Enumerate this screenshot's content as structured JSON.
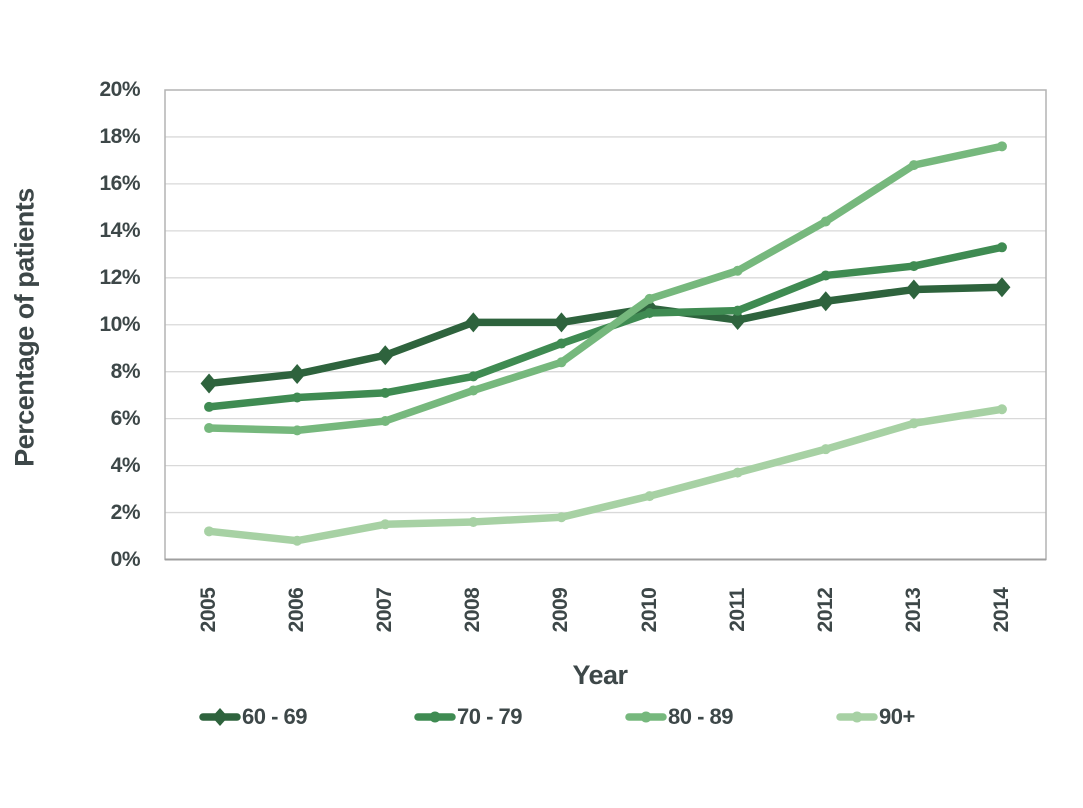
{
  "chart_data": {
    "type": "line",
    "title": "",
    "xlabel": "Year",
    "ylabel": "Percentage of patients",
    "categories": [
      "2005",
      "2006",
      "2007",
      "2008",
      "2009",
      "2010",
      "2011",
      "2012",
      "2013",
      "2014"
    ],
    "yticks": [
      "0%",
      "2%",
      "4%",
      "6%",
      "8%",
      "10%",
      "12%",
      "14%",
      "16%",
      "18%",
      "20%"
    ],
    "ylim": [
      0,
      20
    ],
    "ytick_step": 2,
    "grid": "horizontal",
    "legend_position": "bottom",
    "colors": {
      "text": "#3d4748",
      "gridline": "#d9d9d9",
      "plot_border": "#b3b3b3",
      "axis_line": "#9f9f9f"
    },
    "series": [
      {
        "name": "60 - 69",
        "color": "#2e633d",
        "marker": "diamond",
        "values": [
          7.5,
          7.9,
          8.7,
          10.1,
          10.1,
          10.7,
          10.2,
          11.0,
          11.5,
          11.6
        ]
      },
      {
        "name": "70 - 79",
        "color": "#3f8b52",
        "marker": "circle",
        "values": [
          6.5,
          6.9,
          7.1,
          7.8,
          9.2,
          10.5,
          10.6,
          12.1,
          12.5,
          13.3
        ]
      },
      {
        "name": "80 - 89",
        "color": "#76b87d",
        "marker": "circle",
        "values": [
          5.6,
          5.5,
          5.9,
          7.2,
          8.4,
          11.1,
          12.3,
          14.4,
          16.8,
          17.6
        ]
      },
      {
        "name": "90+",
        "color": "#a7d1a4",
        "marker": "circle",
        "values": [
          1.2,
          0.8,
          1.5,
          1.6,
          1.8,
          2.7,
          3.7,
          4.7,
          5.8,
          6.4
        ]
      }
    ]
  }
}
